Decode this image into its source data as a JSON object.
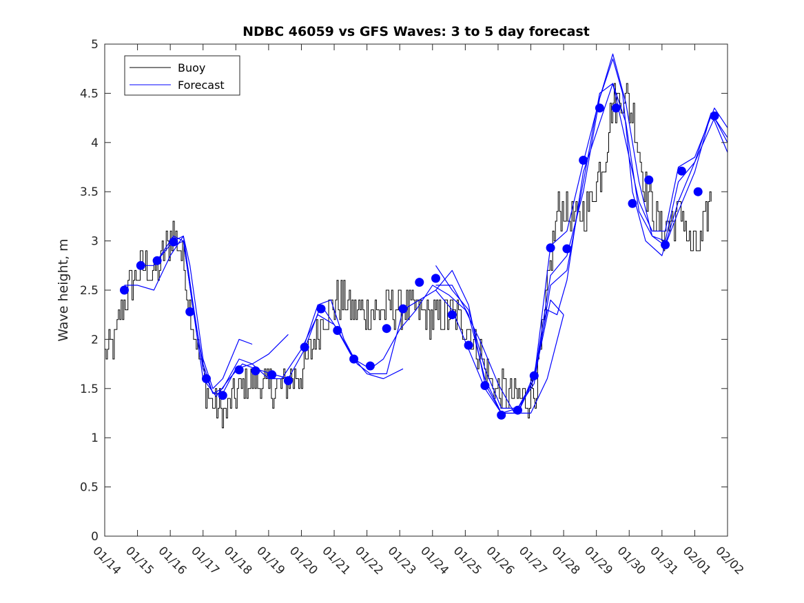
{
  "chart_data": {
    "type": "line",
    "title": "NDBC 46059 vs GFS Waves: 3 to 5 day forecast",
    "xlabel": "",
    "ylabel": "Wave height, m",
    "xlim": [
      0,
      19
    ],
    "ylim": [
      0,
      5
    ],
    "x_tick_labels": [
      "01/14",
      "01/15",
      "01/16",
      "01/17",
      "01/18",
      "01/19",
      "01/20",
      "01/21",
      "01/22",
      "01/23",
      "01/24",
      "01/25",
      "01/26",
      "01/27",
      "01/28",
      "01/29",
      "01/30",
      "01/31",
      "02/01",
      "02/02"
    ],
    "y_ticks": [
      0,
      0.5,
      1,
      1.5,
      2,
      2.5,
      3,
      3.5,
      4,
      4.5,
      5
    ],
    "y_tick_labels": [
      "0",
      "0.5",
      "1",
      "1.5",
      "2",
      "2.5",
      "3",
      "3.5",
      "4",
      "4.5",
      "5"
    ],
    "legend": {
      "position": "top-left",
      "entries": [
        "Buoy",
        "Forecast"
      ]
    },
    "colors": {
      "buoy": "#000000",
      "forecast": "#0000ff",
      "markers": "#0000ff",
      "axes": "#262626"
    },
    "buoy_trend": {
      "x": [
        0,
        0.3,
        0.5,
        0.8,
        1.2,
        1.5,
        1.8,
        2.1,
        2.4,
        2.6,
        2.9,
        3.1,
        3.4,
        3.7,
        4.0,
        4.3,
        4.6,
        5.0,
        5.5,
        6.0,
        6.3,
        6.6,
        6.9,
        7.2,
        7.6,
        8.0,
        8.5,
        9.0,
        9.4,
        9.8,
        10.2,
        10.6,
        11.0,
        11.4,
        11.7,
        12.0,
        12.3,
        12.6,
        12.9,
        13.2,
        13.5,
        13.8,
        14.0,
        14.2,
        14.4,
        14.8,
        15.2,
        15.5,
        15.8,
        16.1,
        16.4,
        16.7,
        17.0,
        17.3,
        17.6,
        17.9,
        18.2,
        18.5
      ],
      "y": [
        1.85,
        1.95,
        2.3,
        2.6,
        2.75,
        2.65,
        2.85,
        3.1,
        2.8,
        2.3,
        1.8,
        1.45,
        1.3,
        1.28,
        1.45,
        1.55,
        1.6,
        1.5,
        1.55,
        1.65,
        1.9,
        2.2,
        2.35,
        2.4,
        2.3,
        2.25,
        2.3,
        2.35,
        2.3,
        2.25,
        2.2,
        2.25,
        2.15,
        1.9,
        1.6,
        1.45,
        1.45,
        1.4,
        1.35,
        1.6,
        2.5,
        3.3,
        3.35,
        3.25,
        3.2,
        3.4,
        3.8,
        4.4,
        4.5,
        4.3,
        3.7,
        3.3,
        3.1,
        3.2,
        3.3,
        2.9,
        3.0,
        3.5
      ]
    },
    "series": [
      {
        "name": "Forecast",
        "values": [
          [
            0.6,
            2.55
          ],
          [
            1.0,
            2.55
          ],
          [
            1.5,
            2.5
          ],
          [
            2.0,
            2.85
          ],
          [
            2.4,
            3.05
          ],
          [
            2.6,
            2.75
          ],
          [
            3.0,
            1.8
          ],
          [
            3.3,
            1.5
          ],
          [
            3.6,
            1.6
          ],
          [
            4.1,
            2.0
          ],
          [
            4.5,
            1.95
          ]
        ]
      },
      {
        "name": "Forecast",
        "values": [
          [
            1.1,
            2.75
          ],
          [
            1.5,
            2.75
          ],
          [
            2.1,
            3.05
          ],
          [
            2.4,
            3.0
          ],
          [
            2.7,
            2.3
          ],
          [
            3.0,
            1.75
          ],
          [
            3.3,
            1.45
          ],
          [
            3.6,
            1.5
          ],
          [
            4.1,
            1.8
          ],
          [
            4.5,
            1.75
          ],
          [
            5.0,
            1.85
          ],
          [
            5.6,
            2.05
          ]
        ]
      },
      {
        "name": "Forecast",
        "values": [
          [
            1.6,
            2.8
          ],
          [
            2.1,
            3.0
          ],
          [
            2.4,
            3.05
          ],
          [
            2.7,
            2.35
          ],
          [
            3.0,
            1.7
          ],
          [
            3.3,
            1.45
          ],
          [
            3.6,
            1.45
          ],
          [
            4.0,
            1.7
          ],
          [
            4.5,
            1.75
          ],
          [
            5.0,
            1.6
          ],
          [
            5.4,
            1.6
          ],
          [
            6.0,
            1.9
          ],
          [
            6.5,
            2.25
          ],
          [
            7.0,
            2.15
          ],
          [
            7.5,
            1.85
          ],
          [
            8.0,
            1.65
          ],
          [
            8.5,
            1.6
          ],
          [
            9.1,
            1.7
          ]
        ]
      },
      {
        "name": "Forecast",
        "values": [
          [
            2.1,
            2.95
          ],
          [
            2.4,
            3.0
          ],
          [
            2.7,
            2.3
          ],
          [
            3.0,
            1.6
          ],
          [
            3.4,
            1.42
          ],
          [
            3.8,
            1.6
          ],
          [
            4.2,
            1.75
          ],
          [
            4.6,
            1.7
          ],
          [
            5.1,
            1.65
          ],
          [
            5.6,
            1.6
          ],
          [
            6.1,
            1.9
          ],
          [
            6.6,
            2.35
          ],
          [
            7.1,
            2.1
          ],
          [
            7.6,
            1.8
          ],
          [
            8.1,
            1.7
          ],
          [
            8.5,
            1.8
          ],
          [
            9.0,
            2.1
          ],
          [
            9.5,
            2.3
          ],
          [
            10.0,
            2.55
          ],
          [
            10.5,
            2.45
          ],
          [
            11.0,
            2.3
          ],
          [
            11.5,
            1.95
          ],
          [
            12.0,
            1.55
          ],
          [
            12.5,
            1.25
          ],
          [
            13.0,
            1.25
          ],
          [
            13.5,
            1.6
          ],
          [
            14.0,
            2.25
          ]
        ]
      },
      {
        "name": "Forecast",
        "values": [
          [
            6.1,
            1.95
          ],
          [
            6.5,
            2.35
          ],
          [
            6.9,
            2.4
          ],
          [
            7.3,
            2.0
          ],
          [
            7.7,
            1.75
          ],
          [
            8.1,
            1.65
          ],
          [
            8.6,
            1.65
          ],
          [
            9.1,
            2.3
          ],
          [
            9.6,
            2.4
          ],
          [
            10.1,
            2.5
          ],
          [
            10.6,
            2.3
          ],
          [
            11.1,
            1.9
          ],
          [
            11.6,
            1.5
          ],
          [
            12.1,
            1.25
          ],
          [
            12.6,
            1.3
          ],
          [
            13.1,
            1.6
          ],
          [
            13.6,
            2.95
          ],
          [
            14.1,
            3.1
          ],
          [
            14.6,
            3.8
          ],
          [
            15.1,
            4.45
          ],
          [
            15.5,
            4.85
          ],
          [
            15.8,
            4.5
          ],
          [
            16.1,
            3.5
          ],
          [
            16.5,
            3.0
          ],
          [
            17.0,
            2.85
          ],
          [
            17.5,
            3.4
          ],
          [
            18.0,
            3.8
          ],
          [
            18.5,
            4.3
          ],
          [
            19.0,
            4.05
          ]
        ]
      },
      {
        "name": "Forecast",
        "values": [
          [
            10.1,
            2.5
          ],
          [
            10.6,
            2.7
          ],
          [
            11.1,
            2.35
          ],
          [
            11.6,
            1.55
          ],
          [
            12.1,
            1.25
          ],
          [
            12.6,
            1.25
          ],
          [
            13.1,
            1.6
          ],
          [
            13.6,
            2.65
          ],
          [
            14.1,
            2.85
          ],
          [
            14.6,
            3.5
          ],
          [
            15.1,
            4.45
          ],
          [
            15.5,
            4.9
          ],
          [
            15.9,
            4.4
          ],
          [
            16.3,
            3.6
          ],
          [
            16.7,
            3.05
          ],
          [
            17.1,
            2.95
          ],
          [
            17.5,
            3.3
          ],
          [
            18.0,
            3.7
          ],
          [
            18.5,
            4.3
          ],
          [
            19.0,
            3.9
          ]
        ]
      },
      {
        "name": "Forecast",
        "values": [
          [
            10.1,
            2.75
          ],
          [
            10.6,
            2.5
          ],
          [
            11.1,
            2.3
          ],
          [
            11.6,
            1.7
          ],
          [
            12.1,
            1.3
          ],
          [
            12.6,
            1.3
          ],
          [
            13.1,
            1.55
          ],
          [
            13.6,
            2.55
          ],
          [
            14.1,
            2.7
          ],
          [
            14.6,
            3.6
          ],
          [
            15.1,
            4.5
          ],
          [
            15.5,
            4.6
          ],
          [
            15.9,
            4.0
          ],
          [
            16.3,
            3.4
          ],
          [
            16.7,
            3.1
          ],
          [
            17.1,
            3.1
          ],
          [
            17.5,
            3.75
          ],
          [
            18.0,
            3.85
          ],
          [
            18.6,
            4.35
          ],
          [
            19.0,
            4.15
          ]
        ]
      },
      {
        "name": "Forecast",
        "values": [
          [
            10.1,
            2.55
          ],
          [
            10.6,
            2.55
          ],
          [
            11.1,
            2.25
          ],
          [
            11.6,
            1.6
          ],
          [
            12.1,
            1.25
          ],
          [
            12.6,
            1.25
          ],
          [
            13.1,
            1.65
          ],
          [
            13.5,
            2.3
          ],
          [
            13.8,
            2.25
          ],
          [
            14.1,
            2.6
          ],
          [
            14.6,
            3.7
          ],
          [
            15.1,
            4.2
          ],
          [
            15.5,
            4.6
          ],
          [
            15.9,
            4.2
          ],
          [
            16.3,
            3.3
          ],
          [
            16.7,
            3.05
          ],
          [
            17.1,
            3.0
          ],
          [
            17.5,
            3.6
          ],
          [
            18.0,
            3.8
          ],
          [
            18.6,
            4.25
          ],
          [
            19.0,
            4.0
          ]
        ]
      },
      {
        "name": "Forecast",
        "values": [
          [
            13.1,
            1.6
          ],
          [
            13.6,
            2.4
          ],
          [
            14.0,
            2.25
          ]
        ]
      }
    ],
    "markers": {
      "x": [
        0.6,
        1.1,
        1.6,
        2.1,
        2.6,
        3.1,
        3.6,
        4.1,
        4.6,
        5.1,
        5.6,
        6.1,
        6.6,
        7.1,
        7.6,
        8.1,
        8.6,
        9.1,
        9.6,
        10.1,
        10.6,
        11.1,
        11.6,
        12.1,
        12.6,
        13.1,
        13.6,
        14.1,
        14.6,
        15.1,
        15.6,
        16.1,
        16.6,
        17.1,
        17.6,
        18.1,
        18.6
      ],
      "y": [
        2.5,
        2.75,
        2.8,
        2.99,
        2.28,
        1.6,
        1.43,
        1.69,
        1.68,
        1.64,
        1.58,
        1.92,
        2.31,
        2.09,
        1.8,
        1.73,
        2.11,
        2.31,
        2.58,
        2.62,
        2.25,
        1.94,
        1.53,
        1.23,
        1.28,
        1.63,
        2.93,
        2.92,
        3.82,
        4.35,
        4.35,
        3.38,
        3.62,
        2.96,
        3.71,
        3.5,
        4.27
      ]
    }
  }
}
